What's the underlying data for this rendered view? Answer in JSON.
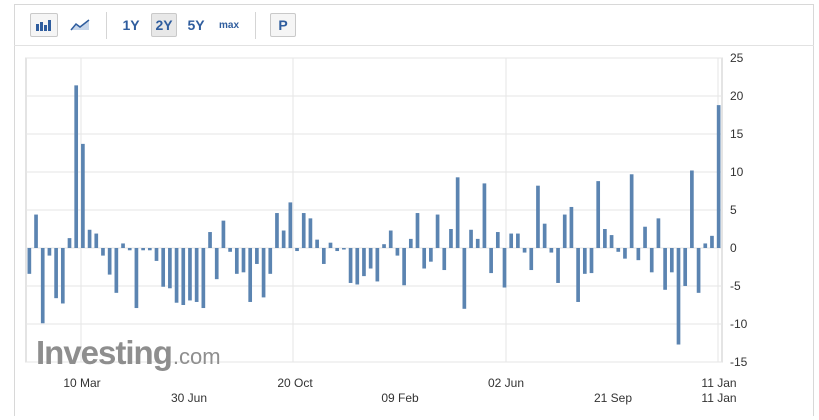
{
  "toolbar": {
    "bar_icon": "bar-chart-icon",
    "line_icon": "line-chart-icon",
    "ranges": [
      "1Y",
      "2Y",
      "5Y",
      "max"
    ],
    "active_range": "2Y",
    "print_label": "P"
  },
  "logo": {
    "main": "Investing",
    "domain": ".com"
  },
  "colors": {
    "bar": "#5b84b1",
    "grid": "#e6e6e6",
    "axis": "#c8c8c8"
  },
  "chart_data": {
    "type": "bar",
    "ylim": [
      -15,
      25
    ],
    "yticks": [
      25,
      20,
      15,
      10,
      5,
      0,
      -5,
      -10,
      -15
    ],
    "y_axis_side": "right",
    "grid": true,
    "x_labels_row1": [
      "10 Mar",
      "20 Oct",
      "02 Jun",
      "11 Jan"
    ],
    "x_labels_row2": [
      "30 Jun",
      "09 Feb",
      "21 Sep",
      "11 Jan"
    ],
    "values": [
      -3.4,
      4.4,
      -9.9,
      -1,
      -6.6,
      -7.3,
      1.3,
      21.4,
      13.7,
      2.4,
      1.9,
      -1,
      -3.5,
      -5.9,
      0.6,
      -0.3,
      -7.9,
      -0.3,
      -0.3,
      -1.7,
      -5.1,
      -5.3,
      -7.2,
      -7.5,
      -6.9,
      -7.1,
      -7.9,
      2.1,
      -4.1,
      3.6,
      -0.5,
      -3.4,
      -3.2,
      -7.1,
      -2.1,
      -6.5,
      -3.4,
      4.6,
      2.3,
      6,
      -0.4,
      4.6,
      3.9,
      1.1,
      -2.1,
      0.7,
      -0.4,
      -0.2,
      -4.6,
      -4.8,
      -3.7,
      -2.7,
      -4.4,
      0.5,
      2.3,
      -1,
      -4.9,
      1.2,
      4.6,
      -2.7,
      -1.8,
      4.4,
      -2.9,
      2.5,
      9.3,
      -8,
      2.4,
      1.2,
      8.5,
      -3.3,
      2.1,
      -5.2,
      1.9,
      1.9,
      -0.6,
      -2.9,
      8.2,
      3.2,
      -0.6,
      -4.6,
      4.4,
      5.4,
      -7.1,
      -3.4,
      -3.3,
      8.8,
      2.5,
      1.7,
      -0.5,
      -1.4,
      9.7,
      -1.6,
      2.8,
      -3.2,
      3.9,
      -5.5,
      -3.2,
      -12.7,
      -5,
      10.2,
      -5.9,
      0.6,
      1.6,
      18.8
    ]
  }
}
